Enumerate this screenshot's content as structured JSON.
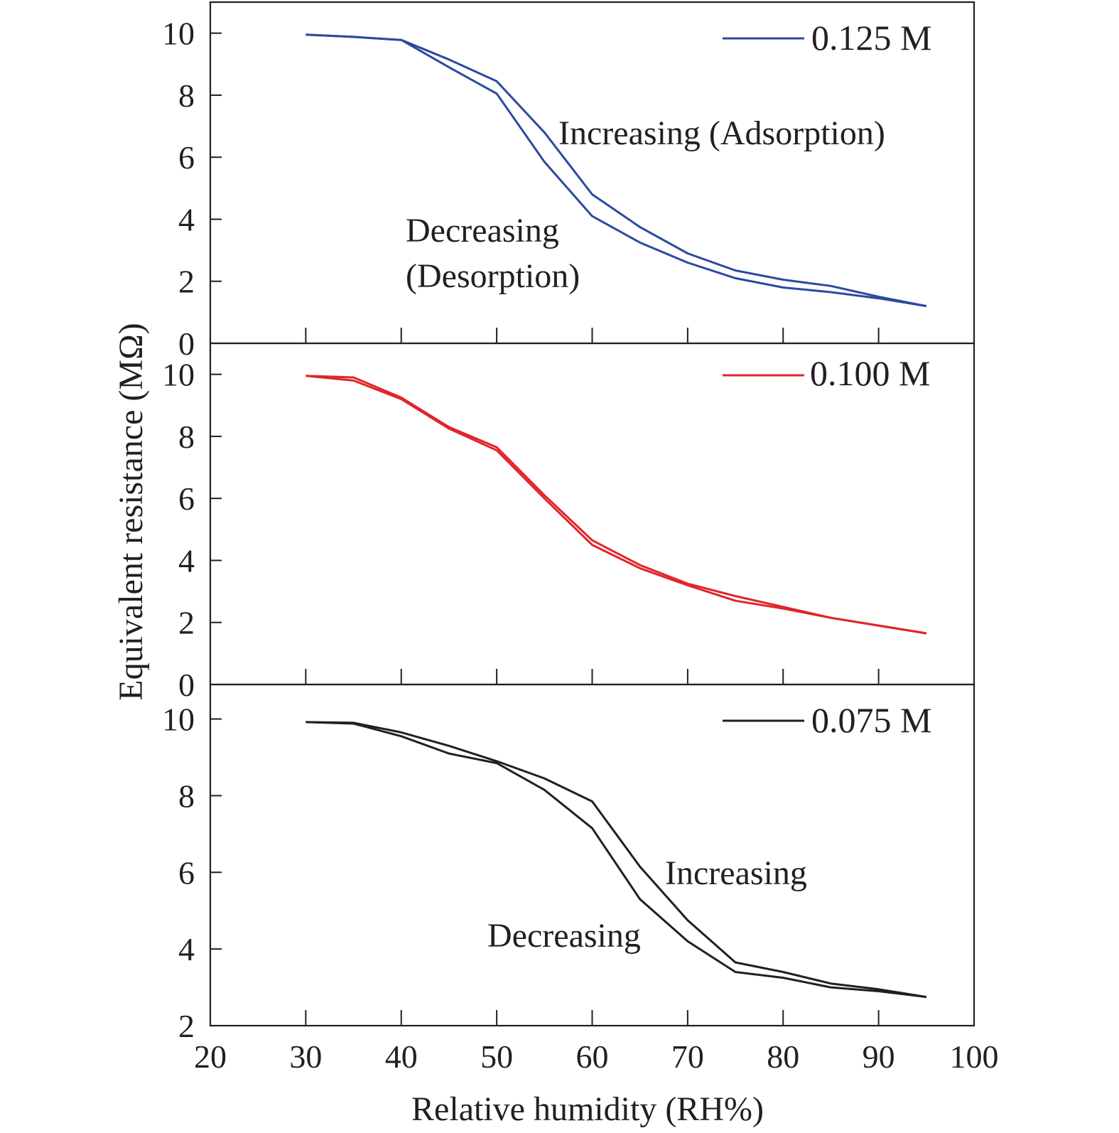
{
  "chart_data": [
    {
      "type": "line",
      "legend_label": "0.125 M",
      "color": "#2b4a9f",
      "x": [
        30,
        35,
        40,
        45,
        50,
        55,
        60,
        65,
        70,
        75,
        80,
        85,
        90,
        95
      ],
      "series": [
        {
          "name": "Increasing (Adsorption)",
          "values": [
            9.95,
            9.88,
            9.78,
            9.15,
            8.45,
            6.8,
            4.8,
            3.75,
            2.9,
            2.35,
            2.05,
            1.85,
            1.5,
            1.2
          ]
        },
        {
          "name": "Decreasing (Desorption)",
          "values": [
            9.95,
            9.88,
            9.78,
            8.9,
            8.05,
            5.85,
            4.1,
            3.25,
            2.6,
            2.1,
            1.8,
            1.65,
            1.45,
            1.2
          ]
        }
      ],
      "annotations": [
        "Increasing (Adsorption)",
        "Decreasing",
        "(Desorption)"
      ],
      "ylim": [
        0,
        11
      ],
      "yticks": [
        "0",
        "2",
        "4",
        "6",
        "8",
        "10"
      ],
      "legend_position": "top-right"
    },
    {
      "type": "line",
      "legend_label": "0.100 M",
      "color": "#e0252b",
      "x": [
        30,
        35,
        40,
        45,
        50,
        55,
        60,
        65,
        70,
        75,
        80,
        85,
        90,
        95
      ],
      "series": [
        {
          "values": [
            9.95,
            9.9,
            9.25,
            8.3,
            7.65,
            6.1,
            4.65,
            3.85,
            3.25,
            2.85,
            2.5,
            2.15,
            1.9,
            1.65
          ]
        },
        {
          "values": [
            9.95,
            9.8,
            9.2,
            8.25,
            7.55,
            6.0,
            4.5,
            3.75,
            3.2,
            2.7,
            2.45,
            2.15,
            1.9,
            1.65
          ]
        }
      ],
      "ylim": [
        0,
        11
      ],
      "yticks": [
        "0",
        "2",
        "4",
        "6",
        "8",
        "10"
      ],
      "legend_position": "top-right"
    },
    {
      "type": "line",
      "legend_label": "0.075 M",
      "color": "#231f20",
      "x": [
        30,
        35,
        40,
        45,
        50,
        55,
        60,
        65,
        70,
        75,
        80,
        85,
        90,
        95
      ],
      "series": [
        {
          "name": "Increasing",
          "values": [
            9.92,
            9.9,
            9.65,
            9.3,
            8.9,
            8.45,
            7.85,
            6.15,
            4.75,
            3.65,
            3.4,
            3.1,
            2.95,
            2.75
          ]
        },
        {
          "name": "Decreasing",
          "values": [
            9.92,
            9.88,
            9.55,
            9.1,
            8.85,
            8.15,
            7.15,
            5.3,
            4.2,
            3.4,
            3.25,
            3.0,
            2.9,
            2.75
          ]
        }
      ],
      "annotations": [
        "Increasing",
        "Decreasing"
      ],
      "ylim": [
        2,
        10.9
      ],
      "yticks": [
        "2",
        "4",
        "6",
        "8",
        "10"
      ],
      "legend_position": "top-right"
    }
  ],
  "x_axis": {
    "label": "Relative humidity (RH%)",
    "range": [
      20,
      100
    ],
    "ticks": [
      "20",
      "30",
      "40",
      "50",
      "60",
      "70",
      "80",
      "90",
      "100"
    ]
  },
  "y_axis": {
    "label": "Equivalent resistance (MΩ)"
  }
}
